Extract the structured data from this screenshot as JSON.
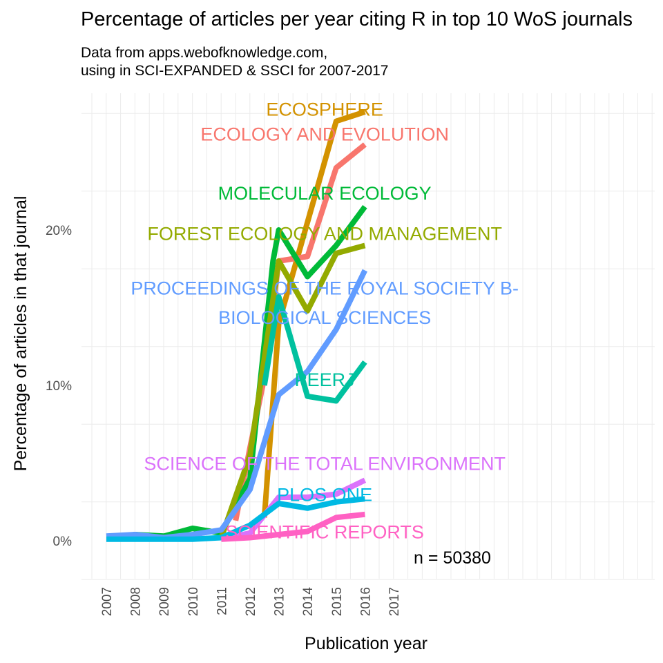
{
  "chart_data": {
    "type": "line",
    "title": "Percentage of articles per year citing R in top 10 WoS journals",
    "subtitle_lines": [
      "Data from apps.webofknowledge.com,",
      "using in SCI-EXPANDED & SSCI for 2007-2017"
    ],
    "xlabel": "Publication year",
    "ylabel": "Percentage of articles in that journal",
    "x_ticks": [
      "2007",
      "2008",
      "2009",
      "2010",
      "2011",
      "2012",
      "2013",
      "2014",
      "2015",
      "2016",
      "2017"
    ],
    "y_ticks": [
      {
        "value": 0,
        "label": "0%"
      },
      {
        "value": 10,
        "label": "10%"
      },
      {
        "value": 20,
        "label": "20%"
      }
    ],
    "ylim": [
      -2.5,
      30
    ],
    "xlim": [
      2006.5,
      2016
    ],
    "grid": true,
    "annotation": "n = 50380",
    "series": [
      {
        "name": "ECOSPHERE",
        "color": "#D39200",
        "x": [
          2012.5,
          2013,
          2014,
          2015,
          2016
        ],
        "values": [
          1.5,
          14.0,
          20.5,
          27.0,
          27.6
        ],
        "label_x": 2014.6,
        "label_y": 27.8
      },
      {
        "name": "ECOLOGY AND EVOLUTION",
        "color": "#F8766D",
        "x": [
          2011.5,
          2012,
          2012.5,
          2013,
          2014,
          2015,
          2016
        ],
        "values": [
          1.3,
          6.0,
          10.5,
          18.0,
          18.3,
          24.0,
          25.5
        ],
        "label_x": 2014.6,
        "label_y": 26.2
      },
      {
        "name": "MOLECULAR ECOLOGY",
        "color": "#00BA38",
        "x": [
          2007.6,
          2008,
          2009,
          2010,
          2011,
          2012,
          2012.8,
          2013,
          2014,
          2015,
          2016
        ],
        "values": [
          0.3,
          0.4,
          0.3,
          0.8,
          0.5,
          4.0,
          18.0,
          20.0,
          17.0,
          19.0,
          21.5
        ],
        "label_x": 2014.6,
        "label_y": 22.4
      },
      {
        "name": "FOREST ECOLOGY AND MANAGEMENT",
        "color": "#93AA00",
        "x": [
          2011,
          2012,
          2013,
          2014,
          2015,
          2016
        ],
        "values": [
          0.2,
          5.5,
          18.0,
          14.8,
          18.5,
          19.0
        ],
        "label_x": 2014.6,
        "label_y": 19.8
      },
      {
        "name": "PROCEEDINGS OF THE ROYAL SOCIETY B-",
        "name_line2": "BIOLOGICAL SCIENCES",
        "color": "#619CFF",
        "x": [
          2007,
          2008,
          2009,
          2010,
          2011,
          2012,
          2013,
          2014,
          2015,
          2016
        ],
        "values": [
          0.3,
          0.4,
          0.2,
          0.4,
          0.7,
          3.3,
          9.4,
          10.9,
          13.6,
          17.4
        ],
        "label_x": 2014.6,
        "label_y": 16.3,
        "label_y2": 14.4
      },
      {
        "name": "PEERJ",
        "color": "#00C19F",
        "x": [
          2012.5,
          2013,
          2014,
          2015,
          2016
        ],
        "values": [
          10.0,
          15.7,
          9.3,
          9.0,
          11.5
        ],
        "label_x": 2014.6,
        "label_y": 10.4
      },
      {
        "name": "SCIENCE OF THE TOTAL ENVIRONMENT",
        "color": "#DB72FB",
        "x": [
          2011,
          2012,
          2013,
          2014,
          2015,
          2016
        ],
        "values": [
          0.1,
          0.5,
          2.8,
          2.8,
          3.0,
          3.9
        ],
        "label_x": 2014.6,
        "label_y": 5.0
      },
      {
        "name": "PLOS ONE",
        "color": "#00B9E3",
        "x": [
          2007,
          2008,
          2009,
          2010,
          2011,
          2012,
          2013,
          2014,
          2015,
          2016
        ],
        "values": [
          0.1,
          0.1,
          0.1,
          0.1,
          0.2,
          1.0,
          2.4,
          2.1,
          2.5,
          2.7
        ],
        "label_x": 2014.6,
        "label_y": 3.0
      },
      {
        "name": "SCIENTIFIC REPORTS",
        "color": "#FF61C3",
        "x": [
          2011,
          2012,
          2013,
          2014,
          2015,
          2016
        ],
        "values": [
          0.1,
          0.2,
          0.4,
          0.6,
          1.5,
          1.7
        ],
        "label_x": 2014.6,
        "label_y": 0.6
      }
    ]
  }
}
